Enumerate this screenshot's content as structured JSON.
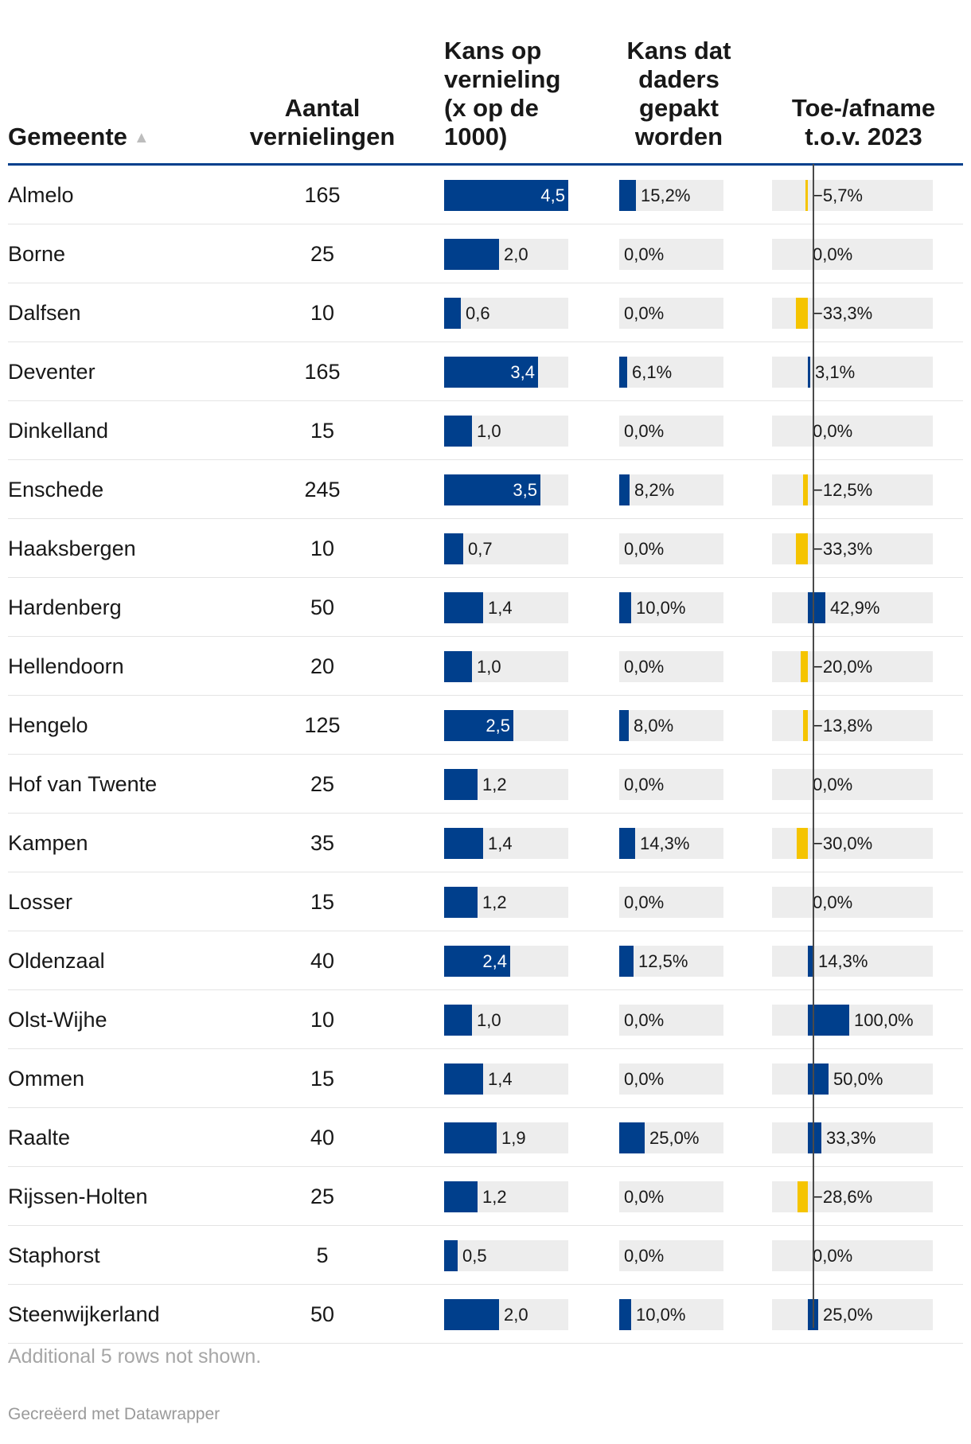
{
  "chart_data": {
    "type": "table",
    "columns": [
      {
        "key": "gemeente",
        "label": "Gemeente",
        "sort": "ascending"
      },
      {
        "key": "aantal",
        "label": "Aantal vernielingen"
      },
      {
        "key": "kans",
        "label": "Kans op vernieling (x op de 1000)",
        "display": "bar"
      },
      {
        "key": "gepakt",
        "label": "Kans dat daders gepakt worden",
        "display": "bar",
        "unit": "%"
      },
      {
        "key": "verandering",
        "label": "Toe-/afname t.o.v. 2023",
        "display": "diverging-bar",
        "unit": "%"
      }
    ],
    "header_lines": {
      "gemeente": [
        "Gemeente"
      ],
      "aantal": [
        "Aantal",
        "vernielingen"
      ],
      "kans": [
        "Kans op",
        "vernieling",
        "(x op de",
        "1000)"
      ],
      "gepakt": [
        "Kans dat",
        "daders",
        "gepakt",
        "worden"
      ],
      "verandering": [
        "Toe-/afname",
        "t.o.v. 2023"
      ]
    },
    "scales": {
      "kans_max": 4.5,
      "gepakt_max": 25.0,
      "verandering_min": -33.3,
      "verandering_max": 100.0
    },
    "rows": [
      {
        "gemeente": "Almelo",
        "aantal": "165",
        "kans": 4.5,
        "kans_label": "4,5",
        "gepakt": 15.2,
        "gepakt_label": "15,2%",
        "verandering": -5.7,
        "verandering_label": "−5,7%"
      },
      {
        "gemeente": "Borne",
        "aantal": "25",
        "kans": 2.0,
        "kans_label": "2,0",
        "gepakt": 0.0,
        "gepakt_label": "0,0%",
        "verandering": 0.0,
        "verandering_label": "0,0%"
      },
      {
        "gemeente": "Dalfsen",
        "aantal": "10",
        "kans": 0.6,
        "kans_label": "0,6",
        "gepakt": 0.0,
        "gepakt_label": "0,0%",
        "verandering": -33.3,
        "verandering_label": "−33,3%"
      },
      {
        "gemeente": "Deventer",
        "aantal": "165",
        "kans": 3.4,
        "kans_label": "3,4",
        "gepakt": 6.1,
        "gepakt_label": "6,1%",
        "verandering": 3.1,
        "verandering_label": "3,1%"
      },
      {
        "gemeente": "Dinkelland",
        "aantal": "15",
        "kans": 1.0,
        "kans_label": "1,0",
        "gepakt": 0.0,
        "gepakt_label": "0,0%",
        "verandering": 0.0,
        "verandering_label": "0,0%"
      },
      {
        "gemeente": "Enschede",
        "aantal": "245",
        "kans": 3.5,
        "kans_label": "3,5",
        "gepakt": 8.2,
        "gepakt_label": "8,2%",
        "verandering": -12.5,
        "verandering_label": "−12,5%"
      },
      {
        "gemeente": "Haaksbergen",
        "aantal": "10",
        "kans": 0.7,
        "kans_label": "0,7",
        "gepakt": 0.0,
        "gepakt_label": "0,0%",
        "verandering": -33.3,
        "verandering_label": "−33,3%"
      },
      {
        "gemeente": "Hardenberg",
        "aantal": "50",
        "kans": 1.4,
        "kans_label": "1,4",
        "gepakt": 10.0,
        "gepakt_label": "10,0%",
        "verandering": 42.9,
        "verandering_label": "42,9%"
      },
      {
        "gemeente": "Hellendoorn",
        "aantal": "20",
        "kans": 1.0,
        "kans_label": "1,0",
        "gepakt": 0.0,
        "gepakt_label": "0,0%",
        "verandering": -20.0,
        "verandering_label": "−20,0%"
      },
      {
        "gemeente": "Hengelo",
        "aantal": "125",
        "kans": 2.5,
        "kans_label": "2,5",
        "gepakt": 8.0,
        "gepakt_label": "8,0%",
        "verandering": -13.8,
        "verandering_label": "−13,8%"
      },
      {
        "gemeente": "Hof van Twente",
        "aantal": "25",
        "kans": 1.2,
        "kans_label": "1,2",
        "gepakt": 0.0,
        "gepakt_label": "0,0%",
        "verandering": 0.0,
        "verandering_label": "0,0%"
      },
      {
        "gemeente": "Kampen",
        "aantal": "35",
        "kans": 1.4,
        "kans_label": "1,4",
        "gepakt": 14.3,
        "gepakt_label": "14,3%",
        "verandering": -30.0,
        "verandering_label": "−30,0%"
      },
      {
        "gemeente": "Losser",
        "aantal": "15",
        "kans": 1.2,
        "kans_label": "1,2",
        "gepakt": 0.0,
        "gepakt_label": "0,0%",
        "verandering": 0.0,
        "verandering_label": "0,0%"
      },
      {
        "gemeente": "Oldenzaal",
        "aantal": "40",
        "kans": 2.4,
        "kans_label": "2,4",
        "gepakt": 12.5,
        "gepakt_label": "12,5%",
        "verandering": 14.3,
        "verandering_label": "14,3%"
      },
      {
        "gemeente": "Olst-Wijhe",
        "aantal": "10",
        "kans": 1.0,
        "kans_label": "1,0",
        "gepakt": 0.0,
        "gepakt_label": "0,0%",
        "verandering": 100.0,
        "verandering_label": "100,0%"
      },
      {
        "gemeente": "Ommen",
        "aantal": "15",
        "kans": 1.4,
        "kans_label": "1,4",
        "gepakt": 0.0,
        "gepakt_label": "0,0%",
        "verandering": 50.0,
        "verandering_label": "50,0%"
      },
      {
        "gemeente": "Raalte",
        "aantal": "40",
        "kans": 1.9,
        "kans_label": "1,9",
        "gepakt": 25.0,
        "gepakt_label": "25,0%",
        "verandering": 33.3,
        "verandering_label": "33,3%"
      },
      {
        "gemeente": "Rijssen-Holten",
        "aantal": "25",
        "kans": 1.2,
        "kans_label": "1,2",
        "gepakt": 0.0,
        "gepakt_label": "0,0%",
        "verandering": -28.6,
        "verandering_label": "−28,6%"
      },
      {
        "gemeente": "Staphorst",
        "aantal": "5",
        "kans": 0.5,
        "kans_label": "0,5",
        "gepakt": 0.0,
        "gepakt_label": "0,0%",
        "verandering": 0.0,
        "verandering_label": "0,0%"
      },
      {
        "gemeente": "Steenwijkerland",
        "aantal": "50",
        "kans": 2.0,
        "kans_label": "2,0",
        "gepakt": 10.0,
        "gepakt_label": "10,0%",
        "verandering": 25.0,
        "verandering_label": "25,0%"
      }
    ],
    "colors": {
      "bar": "#003f8c",
      "negative": "#f5c400",
      "track": "#ededed",
      "rule": "#003f8c",
      "axis": "#4a4a4a"
    },
    "sort_icon": "sort-ascending-triangle-icon"
  },
  "footer": {
    "note": "Additional 5 rows not shown.",
    "credit": "Gecreëerd met Datawrapper"
  }
}
